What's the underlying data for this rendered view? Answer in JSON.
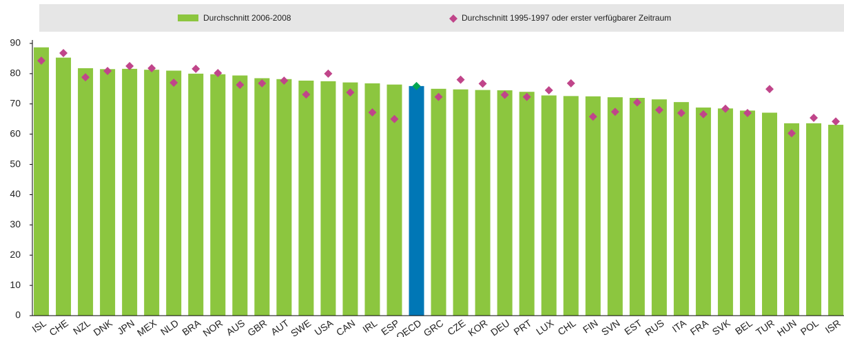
{
  "chart_data": {
    "type": "bar",
    "categories": [
      "ISL",
      "CHE",
      "NZL",
      "DNK",
      "JPN",
      "MEX",
      "NLD",
      "BRA",
      "NOR",
      "AUS",
      "GBR",
      "AUT",
      "SWE",
      "USA",
      "CAN",
      "IRL",
      "ESP",
      "OECD",
      "GRC",
      "CZE",
      "KOR",
      "DEU",
      "PRT",
      "LUX",
      "CHL",
      "FIN",
      "SVN",
      "EST",
      "RUS",
      "ITA",
      "FRA",
      "SVK",
      "BEL",
      "TUR",
      "HUN",
      "POL",
      "ISR"
    ],
    "series": [
      {
        "name": "Durchschnitt 2006-2008",
        "color": "#8cc63f",
        "highlight_color": "#0077b6",
        "highlight": "OECD",
        "values": [
          88.7,
          85.3,
          81.8,
          81.5,
          81.6,
          81.3,
          81.0,
          80.0,
          79.8,
          79.4,
          78.5,
          78.2,
          77.7,
          77.5,
          77.1,
          76.8,
          76.4,
          75.9,
          75.0,
          74.8,
          74.6,
          74.5,
          74.0,
          72.8,
          72.6,
          72.5,
          72.2,
          72.0,
          71.5,
          70.6,
          68.8,
          68.5,
          67.8,
          67.1,
          63.6,
          63.6,
          63.1
        ]
      },
      {
        "name": "Durchschnitt 1995-1997 oder erster verfügbarer Zeitraum",
        "color": "#c0458a",
        "highlight_color": "#00a651",
        "highlight": "OECD",
        "values": [
          84.3,
          86.8,
          78.8,
          80.9,
          82.5,
          81.8,
          77.0,
          81.6,
          80.2,
          76.3,
          76.8,
          77.7,
          73.1,
          80.0,
          73.8,
          67.2,
          65.0,
          75.9,
          72.3,
          78.0,
          76.7,
          73.0,
          72.3,
          74.5,
          76.8,
          65.8,
          67.4,
          70.5,
          68.0,
          67.0,
          66.6,
          68.4,
          67.0,
          74.9,
          60.3,
          65.4,
          64.2
        ]
      }
    ],
    "ylim": [
      0,
      90
    ],
    "yticks": [
      0,
      10,
      20,
      30,
      40,
      50,
      60,
      70,
      80,
      90
    ],
    "grid": false
  }
}
